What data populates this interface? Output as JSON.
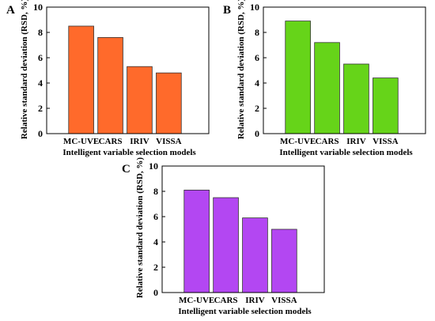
{
  "chart_data": [
    {
      "panel": "A",
      "type": "bar",
      "categories": [
        "MC-UVE",
        "CARS",
        "IRIV",
        "VISSA"
      ],
      "values": [
        8.5,
        7.6,
        5.3,
        4.8
      ],
      "xlabel": "Intelligent variable selection models",
      "ylabel": "Relative standard deviation (RSD, %)",
      "ylim": [
        0,
        10
      ],
      "yticks": [
        0,
        2,
        4,
        6,
        8,
        10
      ],
      "color": "#ff6a2b",
      "grid": false,
      "legend": "none"
    },
    {
      "panel": "B",
      "type": "bar",
      "categories": [
        "MC-UVE",
        "CARS",
        "IRIV",
        "VISSA"
      ],
      "values": [
        8.9,
        7.2,
        5.5,
        4.4
      ],
      "xlabel": "Intelligent variable selection models",
      "ylabel": "Relative standard deviation (RSD, %)",
      "ylim": [
        0,
        10
      ],
      "yticks": [
        0,
        2,
        4,
        6,
        8,
        10
      ],
      "color": "#66d419",
      "grid": false,
      "legend": "none"
    },
    {
      "panel": "C",
      "type": "bar",
      "categories": [
        "MC-UVE",
        "CARS",
        "IRIV",
        "VISSA"
      ],
      "values": [
        8.1,
        7.5,
        5.9,
        5.0
      ],
      "xlabel": "Intelligent variable selection models",
      "ylabel": "Relative standard deviation (RSD, %)",
      "ylim": [
        0,
        10
      ],
      "yticks": [
        0,
        2,
        4,
        6,
        8,
        10
      ],
      "color": "#b347f2",
      "grid": false,
      "legend": "none"
    }
  ]
}
